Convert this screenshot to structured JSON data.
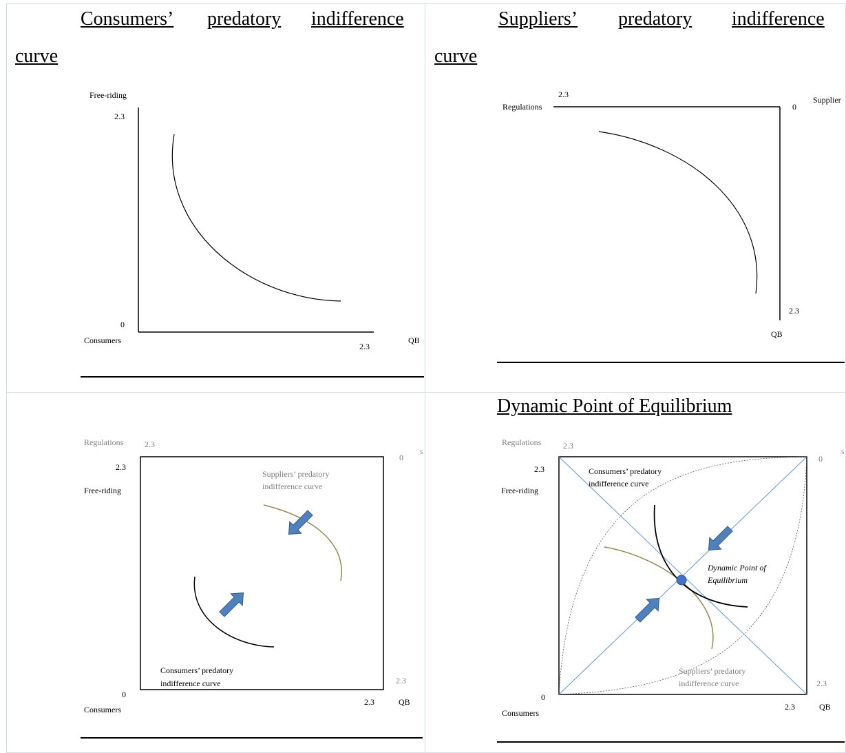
{
  "panels": {
    "consumers": {
      "heading_line1_words": [
        "Consumers’",
        "predatory",
        "indifference"
      ],
      "heading_line2": "curve",
      "ylabel": "Free-riding",
      "ymax": "2.3",
      "origin": "0",
      "xname": "Consumers",
      "xmax": "2.3",
      "xlabel": "QB"
    },
    "suppliers": {
      "heading_line1_words": [
        "Suppliers’",
        "predatory",
        "indifference"
      ],
      "heading_line2": "curve",
      "left_label": "Regulations",
      "top_value": "2.3",
      "corner_value": "0",
      "corner_name": "Supplier",
      "bottom_value": "2.3",
      "bottom_label": "QB"
    },
    "converging": {
      "regulations": "Regulations",
      "reg_value": "2.3",
      "fr_value": "2.3",
      "free_riding": "Free-riding",
      "top_right_value": "0",
      "top_right_letter": "S",
      "supplier_curve_line1": "Suppliers’ predatory",
      "supplier_curve_line2": "indifference curve",
      "consumer_curve_line1": "Consumers’ predatory",
      "consumer_curve_line2": "indifference curve",
      "right_value": "2.3",
      "origin": "0",
      "consumers": "Consumers",
      "x_value": "2.3",
      "x_label": "QB"
    },
    "equilibrium": {
      "heading": "Dynamic Point of Equilibrium",
      "regulations": "Regulations",
      "reg_value": "2.3",
      "fr_value": "2.3",
      "free_riding": "Free-riding",
      "top_right_value": "0",
      "top_right_letter": "S",
      "consumer_curve_line1": "Consumers’ predatory",
      "consumer_curve_line2": "indifference curve",
      "point_line1": "Dynamic Point of",
      "point_line2": "Equilibrium",
      "supplier_curve_line1": "Suppliers’ predatory",
      "supplier_curve_line2": "indifference curve",
      "right_value": "2.3",
      "origin": "0",
      "consumers": "Consumers",
      "x_value": "2.3",
      "x_label": "QB"
    }
  },
  "colors": {
    "axis": "#000000",
    "gray_label": "#7f7f7f",
    "supplier_curve": "#938953",
    "arrow_fill": "#4f81bd",
    "arrow_stroke": "#385d8a",
    "diagonal": "#5b9bd5",
    "dot": "#4472c4",
    "cell_border": "#d3dde6"
  }
}
